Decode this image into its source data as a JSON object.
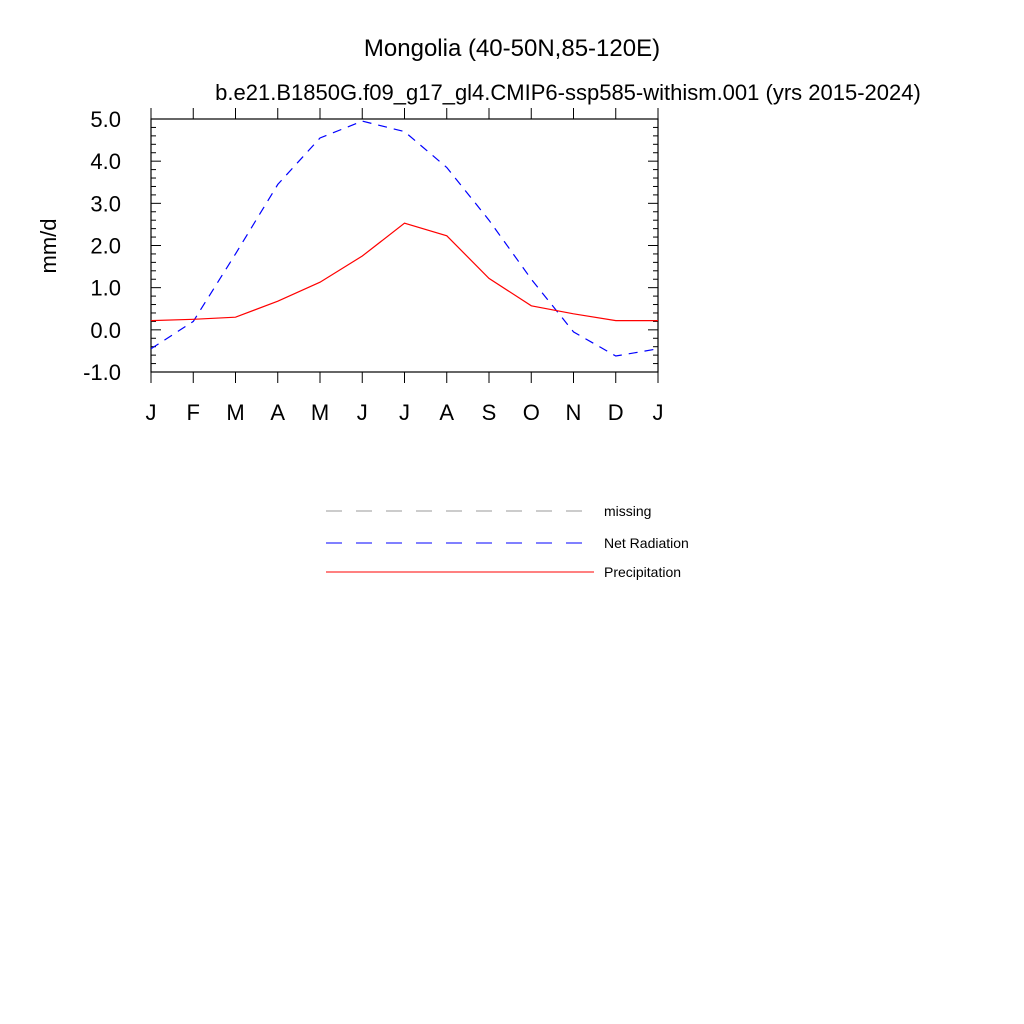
{
  "chart_data": {
    "type": "line",
    "title": "Mongolia (40-50N,85-120E)",
    "subtitle": "b.e21.B1850G.f09_g17_gl4.CMIP6-ssp585-withism.001 (yrs 2015-2024)",
    "xlabel": "",
    "ylabel": "mm/d",
    "categories": [
      "J",
      "F",
      "M",
      "A",
      "M",
      "J",
      "J",
      "A",
      "S",
      "O",
      "N",
      "D",
      "J"
    ],
    "ylim": [
      -1.0,
      5.0
    ],
    "yticks": [
      "-1.0",
      "0.0",
      "1.0",
      "2.0",
      "3.0",
      "4.0",
      "5.0"
    ],
    "grid": false,
    "legend_position": "below",
    "series": [
      {
        "name": "Net Radiation",
        "color": "#0000ff",
        "dash": "dashed",
        "values": [
          -0.45,
          0.2,
          1.8,
          3.45,
          4.55,
          4.95,
          4.7,
          3.85,
          2.6,
          1.2,
          -0.05,
          -0.62,
          -0.45
        ]
      },
      {
        "name": "Precipitation",
        "color": "#ff0000",
        "dash": "solid",
        "values": [
          0.22,
          0.25,
          0.3,
          0.68,
          1.13,
          1.75,
          2.53,
          2.23,
          1.22,
          0.57,
          0.38,
          0.22,
          0.22
        ]
      }
    ],
    "legend": [
      {
        "label": "missing",
        "color": "#999999",
        "dash": "dashed"
      },
      {
        "label": "Net Radiation",
        "color": "#0000ff",
        "dash": "dashed"
      },
      {
        "label": "Precipitation",
        "color": "#ff0000",
        "dash": "solid"
      }
    ]
  }
}
